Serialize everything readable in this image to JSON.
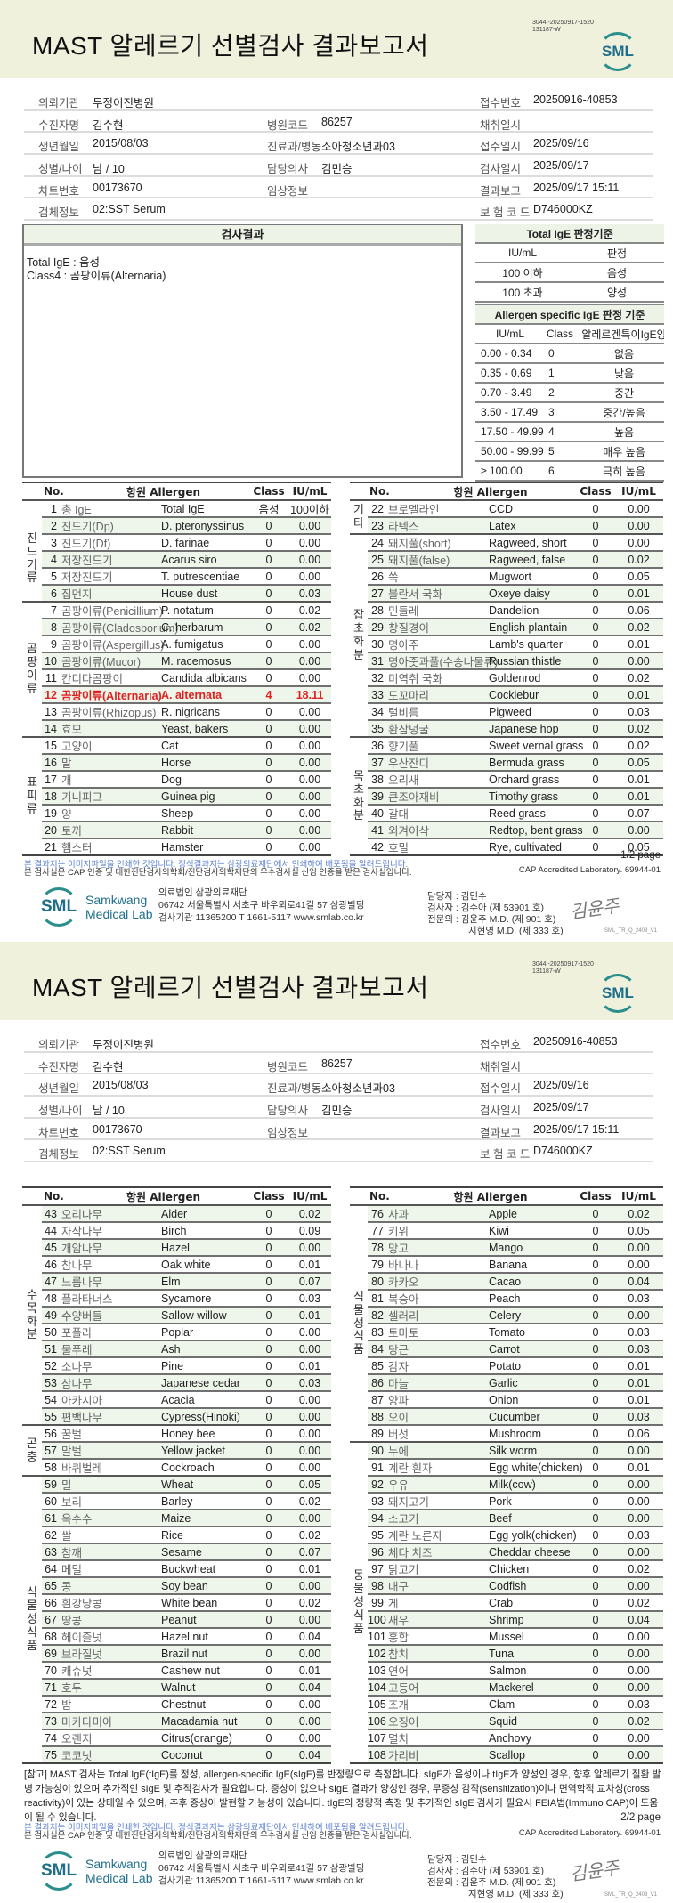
{
  "report": {
    "title": "MAST 알레르기 선별검사 결과보고서",
    "doc_code_1": "3044 -20250917-1520",
    "doc_code_2": "131187-W",
    "logo": "SML"
  },
  "info_rows": [
    [
      [
        "의뢰기관",
        "두정이진병원"
      ],
      [
        "",
        ""
      ],
      [
        "접수번호",
        "20250916-40853"
      ]
    ],
    [
      [
        "수진자명",
        "김수현"
      ],
      [
        "병원코드",
        "86257"
      ],
      [
        "채취일시",
        ""
      ]
    ],
    [
      [
        "생년월일",
        "2015/08/03"
      ],
      [
        "진료과/병동",
        "소아청소년과03"
      ],
      [
        "접수일시",
        "2025/09/16"
      ]
    ],
    [
      [
        "성별/나이",
        "남 / 10"
      ],
      [
        "담당의사",
        "김민승"
      ],
      [
        "검사일시",
        "2025/09/17"
      ]
    ],
    [
      [
        "차트번호",
        "00173670"
      ],
      [
        "임상정보",
        ""
      ],
      [
        "결과보고",
        "2025/09/17 15:11"
      ]
    ],
    [
      [
        "검체정보",
        "02:SST Serum"
      ],
      [
        "",
        ""
      ],
      [
        "보 험 코 드",
        "D746000KZ"
      ]
    ]
  ],
  "results": {
    "header": "검사결과",
    "line1": "Total IgE : 음성",
    "line2": "Class4 : 곰팡이류(Alternaria)"
  },
  "total_ige_criteria": {
    "header": "Total IgE 판정기준",
    "columns": [
      "IU/mL",
      "판정"
    ],
    "rows": [
      [
        "100 이하",
        "음성"
      ],
      [
        "100 초과",
        "양성"
      ]
    ]
  },
  "specific_ige_criteria": {
    "header": "Allergen specific IgE 판정 기준",
    "columns": [
      "IU/mL",
      "Class",
      "알레르겐특이IgE양"
    ],
    "rows": [
      [
        "0.00 - 0.34",
        "0",
        "없음"
      ],
      [
        "0.35 - 0.69",
        "1",
        "낮음"
      ],
      [
        "0.70 - 3.49",
        "2",
        "중간"
      ],
      [
        "3.50 - 17.49",
        "3",
        "중간/높음"
      ],
      [
        "17.50 - 49.99",
        "4",
        "높음"
      ],
      [
        "50.00 - 99.99",
        "5",
        "매우 높음"
      ],
      [
        "≥ 100.00",
        "6",
        "극히 높음"
      ]
    ]
  },
  "table_headers": {
    "no": "No.",
    "allergen": "항원 Allergen",
    "class": "Class",
    "value": "IU/mL"
  },
  "colors": {
    "positive": "#e02020",
    "accent": "#2a8f8c",
    "row_shade": "#eef5ea",
    "band": "#eff1dd"
  },
  "tables": {
    "p1_left": {
      "highlight": [
        "12"
      ],
      "groups": [
        {
          "label": "",
          "rows": [
            [
              "1",
              "총 IgE",
              "Total IgE",
              "음성",
              "100이하"
            ]
          ]
        },
        {
          "label": "진드기류",
          "rows": [
            [
              "2",
              "진드기(Dp)",
              "D. pteronyssinus",
              "0",
              "0.00"
            ],
            [
              "3",
              "진드기(Df)",
              "D. farinae",
              "0",
              "0.00"
            ],
            [
              "4",
              "저장진드기",
              "Acarus siro",
              "0",
              "0.00"
            ],
            [
              "5",
              "저장진드기",
              "T. putrescentiae",
              "0",
              "0.00"
            ],
            [
              "6",
              "집먼지",
              "House dust",
              "0",
              "0.03"
            ]
          ]
        },
        {
          "label": "곰팡이류",
          "rows": [
            [
              "7",
              "곰팡이류(Penicillium)",
              "P. notatum",
              "0",
              "0.02"
            ],
            [
              "8",
              "곰팡이류(Cladosporium)",
              "C. herbarum",
              "0",
              "0.02"
            ],
            [
              "9",
              "곰팡이류(Aspergillus)",
              "A. fumigatus",
              "0",
              "0.00"
            ],
            [
              "10",
              "곰팡이류(Mucor)",
              "M. racemosus",
              "0",
              "0.00"
            ],
            [
              "11",
              "칸디다곰팡이",
              "Candida albicans",
              "0",
              "0.00"
            ],
            [
              "12",
              "곰팡이류(Alternaria)",
              "A. alternata",
              "4",
              "18.11"
            ],
            [
              "13",
              "곰팡이류(Rhizopus)",
              "R. nigricans",
              "0",
              "0.00"
            ],
            [
              "14",
              "효모",
              "Yeast, bakers",
              "0",
              "0.00"
            ]
          ]
        },
        {
          "label": "표피류",
          "rows": [
            [
              "15",
              "고양이",
              "Cat",
              "0",
              "0.00"
            ],
            [
              "16",
              "말",
              "Horse",
              "0",
              "0.00"
            ],
            [
              "17",
              "개",
              "Dog",
              "0",
              "0.00"
            ],
            [
              "18",
              "기니피그",
              "Guinea pig",
              "0",
              "0.00"
            ],
            [
              "19",
              "양",
              "Sheep",
              "0",
              "0.00"
            ],
            [
              "20",
              "토끼",
              "Rabbit",
              "0",
              "0.00"
            ],
            [
              "21",
              "햄스터",
              "Hamster",
              "0",
              "0.00"
            ]
          ]
        }
      ]
    },
    "p1_right": {
      "highlight": [],
      "groups": [
        {
          "label": "기타",
          "rows": [
            [
              "22",
              "브로멜라인",
              "CCD",
              "0",
              "0.00"
            ],
            [
              "23",
              "라텍스",
              "Latex",
              "0",
              "0.00"
            ]
          ]
        },
        {
          "label": "잡초화분",
          "rows": [
            [
              "24",
              "돼지풀(short)",
              "Ragweed, short",
              "0",
              "0.00"
            ],
            [
              "25",
              "돼지풀(false)",
              "Ragweed, false",
              "0",
              "0.02"
            ],
            [
              "26",
              "쑥",
              "Mugwort",
              "0",
              "0.05"
            ],
            [
              "27",
              "불란서 국화",
              "Oxeye daisy",
              "0",
              "0.01"
            ],
            [
              "28",
              "민들레",
              "Dandelion",
              "0",
              "0.06"
            ],
            [
              "29",
              "창질경이",
              "English plantain",
              "0",
              "0.02"
            ],
            [
              "30",
              "명아주",
              "Lamb's quarter",
              "0",
              "0.01"
            ],
            [
              "31",
              "명아줏과풀(수송나물류)",
              "Russian thistle",
              "0",
              "0.00"
            ],
            [
              "32",
              "미역취 국화",
              "Goldenrod",
              "0",
              "0.02"
            ],
            [
              "33",
              "도꼬마리",
              "Cocklebur",
              "0",
              "0.01"
            ],
            [
              "34",
              "털비름",
              "Pigweed",
              "0",
              "0.03"
            ],
            [
              "35",
              "환삼덩굴",
              "Japanese hop",
              "0",
              "0.02"
            ]
          ]
        },
        {
          "label": "목초화분",
          "rows": [
            [
              "36",
              "향기풀",
              "Sweet vernal grass",
              "0",
              "0.02"
            ],
            [
              "37",
              "우산잔디",
              "Bermuda grass",
              "0",
              "0.05"
            ],
            [
              "38",
              "오리새",
              "Orchard grass",
              "0",
              "0.01"
            ],
            [
              "39",
              "큰조아재비",
              "Timothy grass",
              "0",
              "0.01"
            ],
            [
              "40",
              "갈대",
              "Reed grass",
              "0",
              "0.07"
            ],
            [
              "41",
              "외겨이삭",
              "Redtop, bent grass",
              "0",
              "0.00"
            ],
            [
              "42",
              "호밀",
              "Rye, cultivated",
              "0",
              "0.05"
            ]
          ]
        }
      ]
    },
    "p2_left": {
      "highlight": [],
      "groups": [
        {
          "label": "수목화분",
          "rows": [
            [
              "43",
              "오리나무",
              "Alder",
              "0",
              "0.02"
            ],
            [
              "44",
              "자작나무",
              "Birch",
              "0",
              "0.09"
            ],
            [
              "45",
              "개암나무",
              "Hazel",
              "0",
              "0.00"
            ],
            [
              "46",
              "참나무",
              "Oak white",
              "0",
              "0.01"
            ],
            [
              "47",
              "느릅나무",
              "Elm",
              "0",
              "0.07"
            ],
            [
              "48",
              "플라타너스",
              "Sycamore",
              "0",
              "0.03"
            ],
            [
              "49",
              "수양버들",
              "Sallow willow",
              "0",
              "0.01"
            ],
            [
              "50",
              "포플라",
              "Poplar",
              "0",
              "0.00"
            ],
            [
              "51",
              "물푸레",
              "Ash",
              "0",
              "0.00"
            ],
            [
              "52",
              "소나무",
              "Pine",
              "0",
              "0.01"
            ],
            [
              "53",
              "삼나무",
              "Japanese cedar",
              "0",
              "0.03"
            ],
            [
              "54",
              "아카시아",
              "Acacia",
              "0",
              "0.00"
            ],
            [
              "55",
              "편백나무",
              "Cypress(Hinoki)",
              "0",
              "0.00"
            ]
          ]
        },
        {
          "label": "곤충",
          "rows": [
            [
              "56",
              "꿀벌",
              "Honey bee",
              "0",
              "0.00"
            ],
            [
              "57",
              "말벌",
              "Yellow jacket",
              "0",
              "0.00"
            ],
            [
              "58",
              "바퀴벌레",
              "Cockroach",
              "0",
              "0.00"
            ]
          ]
        },
        {
          "label": "식물성식품",
          "rows": [
            [
              "59",
              "밀",
              "Wheat",
              "0",
              "0.05"
            ],
            [
              "60",
              "보리",
              "Barley",
              "0",
              "0.02"
            ],
            [
              "61",
              "옥수수",
              "Maize",
              "0",
              "0.00"
            ],
            [
              "62",
              "쌀",
              "Rice",
              "0",
              "0.02"
            ],
            [
              "63",
              "참깨",
              "Sesame",
              "0",
              "0.07"
            ],
            [
              "64",
              "메밀",
              "Buckwheat",
              "0",
              "0.01"
            ],
            [
              "65",
              "콩",
              "Soy bean",
              "0",
              "0.00"
            ],
            [
              "66",
              "흰강낭콩",
              "White bean",
              "0",
              "0.02"
            ],
            [
              "67",
              "땅콩",
              "Peanut",
              "0",
              "0.00"
            ],
            [
              "68",
              "헤이즐넛",
              "Hazel nut",
              "0",
              "0.04"
            ],
            [
              "69",
              "브라질넛",
              "Brazil nut",
              "0",
              "0.00"
            ],
            [
              "70",
              "캐슈넛",
              "Cashew nut",
              "0",
              "0.01"
            ],
            [
              "71",
              "호두",
              "Walnut",
              "0",
              "0.04"
            ],
            [
              "72",
              "밤",
              "Chestnut",
              "0",
              "0.00"
            ],
            [
              "73",
              "마카다미아",
              "Macadamia nut",
              "0",
              "0.00"
            ],
            [
              "74",
              "오렌지",
              "Citrus(orange)",
              "0",
              "0.00"
            ],
            [
              "75",
              "코코넛",
              "Coconut",
              "0",
              "0.04"
            ]
          ]
        }
      ]
    },
    "p2_right": {
      "highlight": [],
      "groups": [
        {
          "label": "식물성식품",
          "rows": [
            [
              "76",
              "사과",
              "Apple",
              "0",
              "0.02"
            ],
            [
              "77",
              "키위",
              "Kiwi",
              "0",
              "0.05"
            ],
            [
              "78",
              "망고",
              "Mango",
              "0",
              "0.00"
            ],
            [
              "79",
              "바나나",
              "Banana",
              "0",
              "0.00"
            ],
            [
              "80",
              "카카오",
              "Cacao",
              "0",
              "0.04"
            ],
            [
              "81",
              "복숭아",
              "Peach",
              "0",
              "0.03"
            ],
            [
              "82",
              "셀러리",
              "Celery",
              "0",
              "0.00"
            ],
            [
              "83",
              "토마토",
              "Tomato",
              "0",
              "0.03"
            ],
            [
              "84",
              "당근",
              "Carrot",
              "0",
              "0.03"
            ],
            [
              "85",
              "감자",
              "Potato",
              "0",
              "0.01"
            ],
            [
              "86",
              "마늘",
              "Garlic",
              "0",
              "0.01"
            ],
            [
              "87",
              "양파",
              "Onion",
              "0",
              "0.01"
            ],
            [
              "88",
              "오이",
              "Cucumber",
              "0",
              "0.03"
            ],
            [
              "89",
              "버섯",
              "Mushroom",
              "0",
              "0.06"
            ]
          ]
        },
        {
          "label": "동물성식품",
          "rows": [
            [
              "90",
              "누에",
              "Silk worm",
              "0",
              "0.00"
            ],
            [
              "91",
              "계란 흰자",
              "Egg white(chicken)",
              "0",
              "0.01"
            ],
            [
              "92",
              "우유",
              "Milk(cow)",
              "0",
              "0.00"
            ],
            [
              "93",
              "돼지고기",
              "Pork",
              "0",
              "0.00"
            ],
            [
              "94",
              "소고기",
              "Beef",
              "0",
              "0.00"
            ],
            [
              "95",
              "계란 노른자",
              "Egg yolk(chicken)",
              "0",
              "0.03"
            ],
            [
              "96",
              "체다 치즈",
              "Cheddar cheese",
              "0",
              "0.00"
            ],
            [
              "97",
              "닭고기",
              "Chicken",
              "0",
              "0.02"
            ],
            [
              "98",
              "대구",
              "Codfish",
              "0",
              "0.00"
            ],
            [
              "99",
              "게",
              "Crab",
              "0",
              "0.02"
            ],
            [
              "100",
              "새우",
              "Shrimp",
              "0",
              "0.04"
            ],
            [
              "101",
              "홍합",
              "Mussel",
              "0",
              "0.00"
            ],
            [
              "102",
              "참치",
              "Tuna",
              "0",
              "0.00"
            ],
            [
              "103",
              "연어",
              "Salmon",
              "0",
              "0.00"
            ],
            [
              "104",
              "고등어",
              "Mackerel",
              "0",
              "0.00"
            ],
            [
              "105",
              "조개",
              "Clam",
              "0",
              "0.03"
            ],
            [
              "106",
              "오징어",
              "Squid",
              "0",
              "0.02"
            ],
            [
              "107",
              "멸치",
              "Anchovy",
              "0",
              "0.00"
            ],
            [
              "108",
              "가리비",
              "Scallop",
              "0",
              "0.00"
            ]
          ]
        }
      ]
    }
  },
  "note": "[참고] MAST 검사는 Total IgE(tIgE)를 정성, allergen-specific IgE(sIgE)를 반정량으로 측정합니다. sIgE가 음성이나 tIgE가 양성인 경우, 향후 알레르기 질환 발병 가능성이 있으며 추가적인 sIgE 및 추적검사가 필요합니다. 증상이 없으나 sIgE 결과가 양성인 경우, 무증상 감작(sensitization)이나 면역학적 교차성(cross reactivity)이 있는 상태일 수 있으며, 추후 증상이 발현할 가능성이 있습니다. tIgE의 정량적 측정 및 추가적인 sIgE 검사가 필요시 FEIA법(Immuno CAP)이 도움이 될 수 있습니다.",
  "footer": {
    "page1": "1/2 page",
    "page2": "2/2 page",
    "disclaimer": "본 결과지는 이미지파일을 인쇄한 것입니다. 정식결과지는 삼광의료재단에서 인쇄하여 배포됨을 알려드립니다.",
    "certification": "본 검사실은 CAP 인증 및 대한진단검사의학회/진단검사의학재단의 우수검사실 신임 인증을 받은 검사실입니다.",
    "cap": "CAP Accredited Laboratory. 69944-01",
    "logo_mark": "SML",
    "logo_name_1": "Samkwang",
    "logo_name_2": "Medical Lab",
    "org_name": "의료법인 삼광의료재단",
    "org_address": "06742 서울특별시 서초구 바우뫼로41길 57 삼광빌딩",
    "org_contact": "검사기관 11365200 T 1661-5117 www.smlab.co.kr",
    "staff_manager": "담당자 : 김민수",
    "staff_tester": "검사자 : 김수아 (제 53901 호)",
    "staff_specialist_1": "전문의 : 김윤주 M.D. (제 901 호)",
    "staff_specialist_2": "지현영 M.D. (제 333 호)",
    "signature": "김윤주",
    "form_code": "SML_TR_Q_2408_V1"
  }
}
